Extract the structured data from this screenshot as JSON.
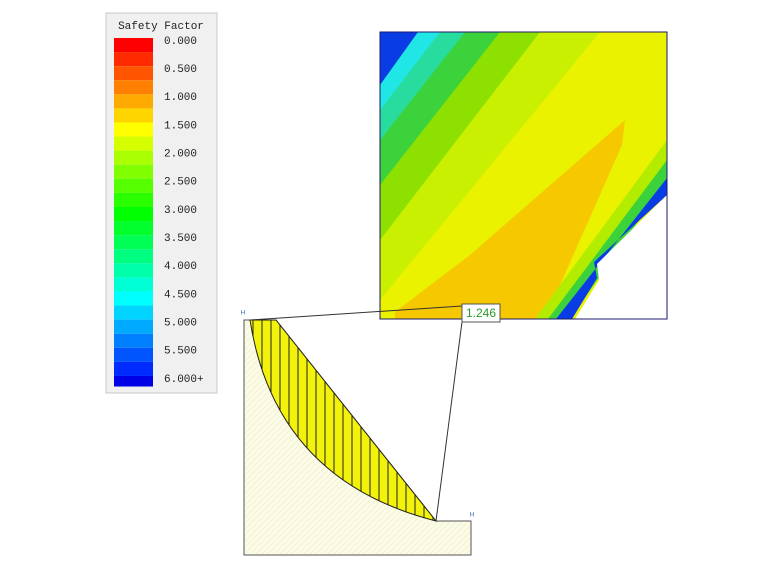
{
  "legend": {
    "title": "Safety Factor",
    "labels": [
      "0.000",
      "0.500",
      "1.000",
      "1.500",
      "2.000",
      "2.500",
      "3.000",
      "3.500",
      "4.000",
      "4.500",
      "5.000",
      "5.500",
      "6.000+"
    ]
  },
  "annotation": {
    "factor_of_safety": "1.246"
  }
}
